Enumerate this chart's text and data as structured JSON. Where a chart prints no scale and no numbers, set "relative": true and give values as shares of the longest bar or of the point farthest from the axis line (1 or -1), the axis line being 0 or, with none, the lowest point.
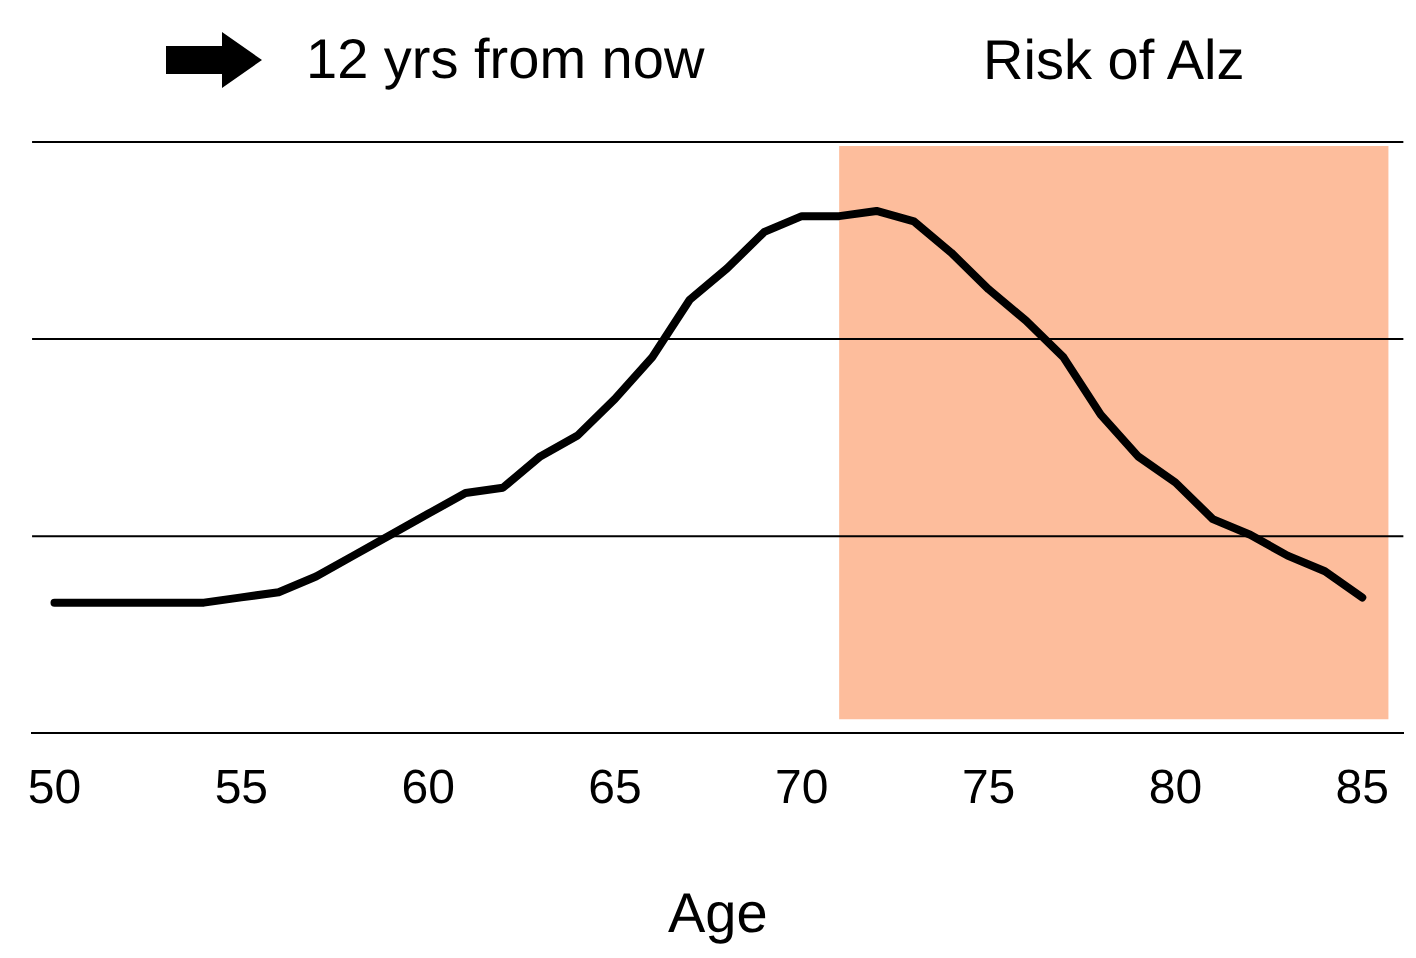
{
  "chart_data": {
    "type": "line",
    "relative": true,
    "xlabel": "Age",
    "annotations": [
      "12 yrs from now"
    ],
    "x": [
      50,
      51,
      52,
      53,
      54,
      55,
      56,
      57,
      58,
      59,
      60,
      61,
      62,
      63,
      64,
      65,
      66,
      67,
      68,
      69,
      70,
      71,
      72,
      73,
      74,
      75,
      76,
      77,
      78,
      79,
      80,
      81,
      82,
      83,
      84,
      85
    ],
    "series": [
      {
        "color": "#000000",
        "values": [
          0.25,
          0.25,
          0.25,
          0.25,
          0.25,
          0.26,
          0.27,
          0.3,
          0.34,
          0.38,
          0.42,
          0.46,
          0.47,
          0.53,
          0.57,
          0.64,
          0.72,
          0.83,
          0.89,
          0.96,
          0.99,
          0.99,
          1,
          0.98,
          0.92,
          0.85,
          0.79,
          0.72,
          0.61,
          0.53,
          0.48,
          0.41,
          0.38,
          0.34,
          0.31,
          0.26
        ]
      }
    ],
    "ref_lines": [
      {
        "axis": "y",
        "value": 0.377,
        "color": "#000000"
      },
      {
        "axis": "y",
        "value": 0.755,
        "color": "#000000"
      },
      {
        "axis": "y",
        "value": 1.132,
        "color": "#000000"
      }
    ],
    "tick_labels": "x",
    "xlim": [
      49.4,
      86.1
    ],
    "xticks": [
      50,
      55,
      60,
      65,
      70,
      75,
      80,
      85
    ],
    "bands": [
      {
        "axis": "x",
        "from": 71,
        "to": 85.7,
        "label": "Risk of Alz",
        "color": "#fdbd9c"
      }
    ],
    "legend": false,
    "marker": "none",
    "line_style": "solid"
  }
}
